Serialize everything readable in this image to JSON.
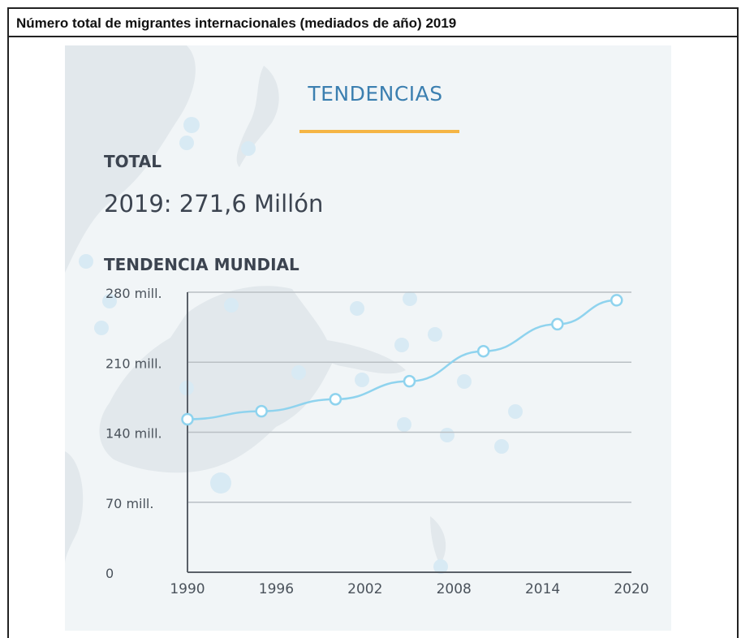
{
  "header": {
    "title": "Número total de migrantes internacionales (mediados de año) 2019"
  },
  "panel": {
    "tab_title": "TENDENCIAS",
    "total_label": "TOTAL",
    "total_value": "2019: 271,6 Millón",
    "trend_label": "TENDENCIA MUNDIAL"
  },
  "colors": {
    "accent": "#3b7fb0",
    "underline": "#f5b545",
    "line": "#8fd3ee",
    "panel_bg": "#f1f5f7"
  },
  "chart_data": {
    "type": "line",
    "title": "",
    "xlabel": "",
    "ylabel": "",
    "x_ticks": [
      "1990",
      "1996",
      "2002",
      "2008",
      "2014",
      "2020"
    ],
    "y_ticks": [
      "0",
      "70 mill.",
      "140 mill.",
      "210 mill.",
      "280 mill."
    ],
    "xlim": [
      1990,
      2020
    ],
    "ylim": [
      0,
      280
    ],
    "grid": true,
    "series": [
      {
        "x": [
          1990,
          1995,
          2000,
          2005,
          2010,
          2015,
          2019
        ],
        "values": [
          153,
          161,
          173,
          191,
          221,
          248,
          272
        ]
      }
    ]
  }
}
